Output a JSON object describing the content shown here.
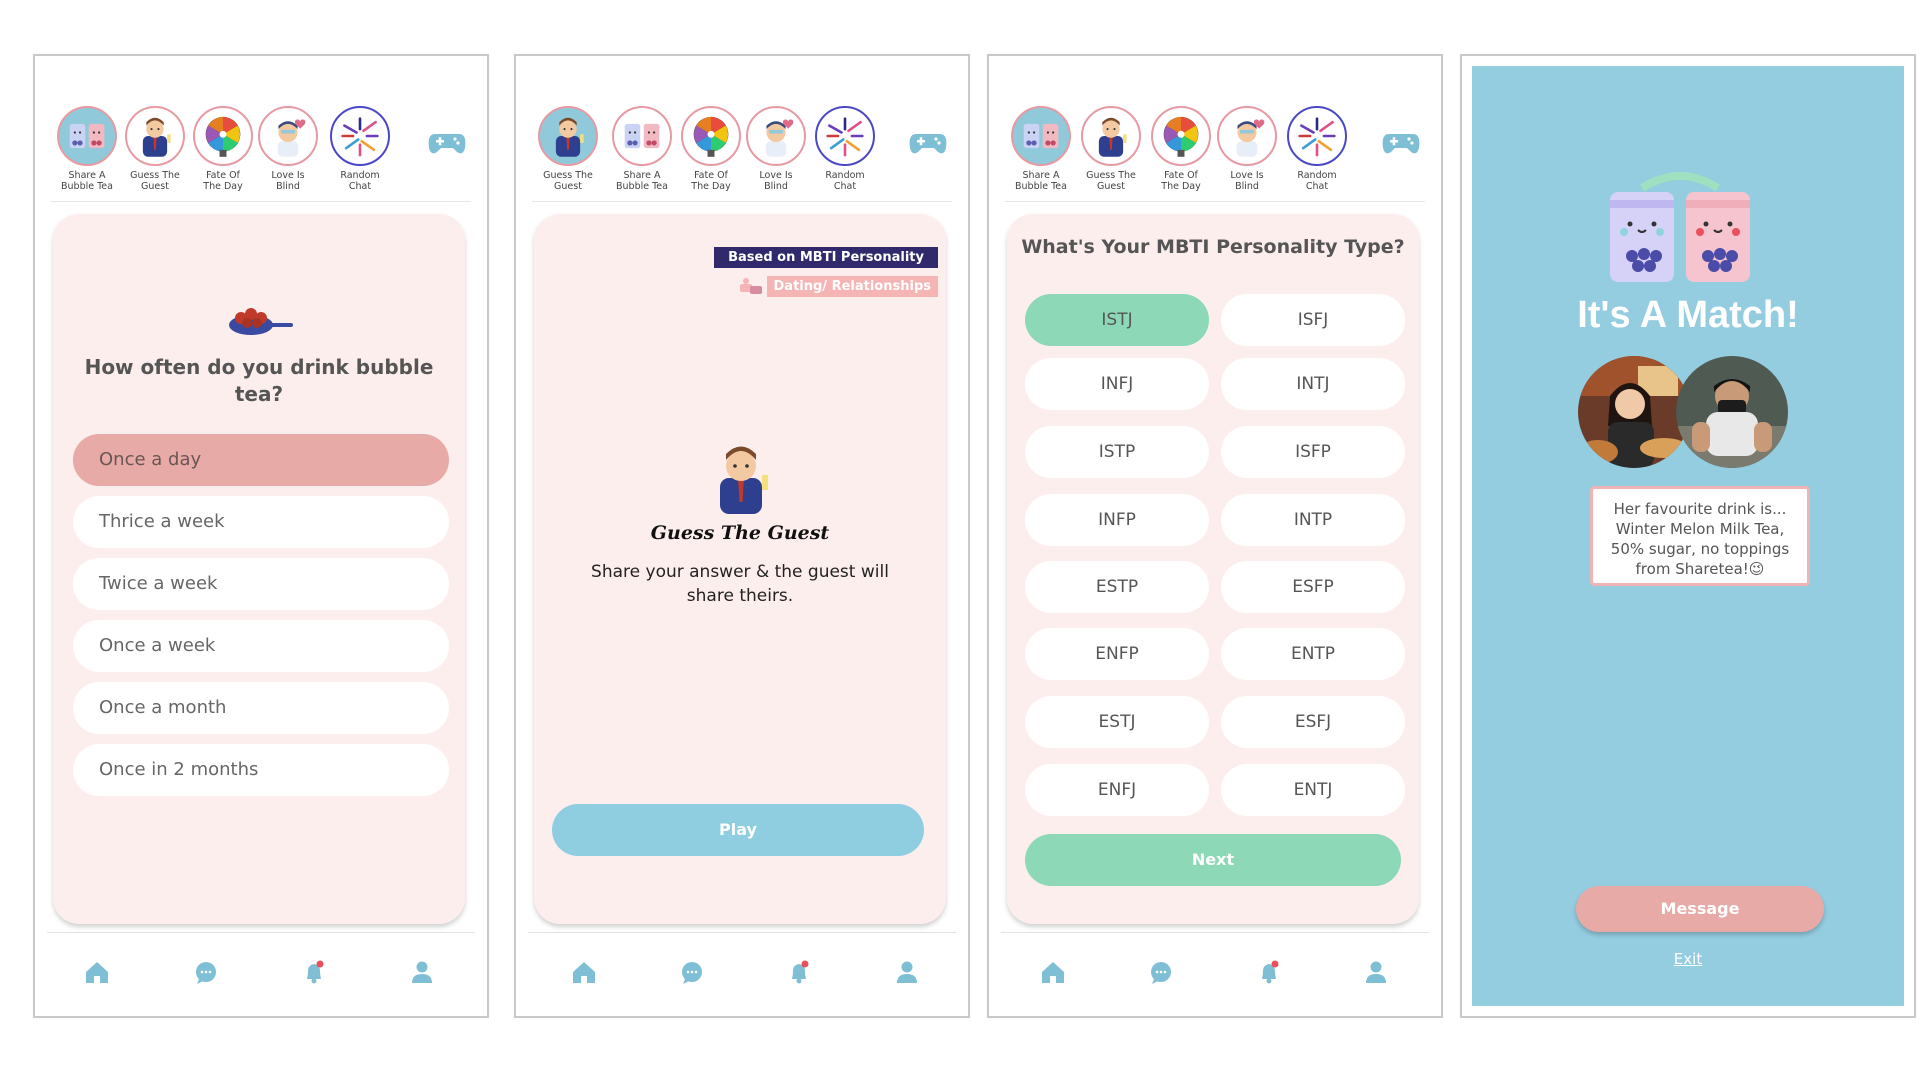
{
  "games": {
    "share_bubble_tea": "Share A\nBubble Tea",
    "guess_the_guest": "Guess The\nGuest",
    "fate_of_the_day": "Fate Of\nThe Day",
    "love_is_blind": "Love Is\nBlind",
    "random_chat": "Random\nChat"
  },
  "screen1": {
    "question": "How often do you drink bubble tea?",
    "options": [
      "Once a day",
      "Thrice a week",
      "Twice a week",
      "Once a week",
      "Once a month",
      "Once in 2 months"
    ],
    "selected": "Once a day"
  },
  "screen2": {
    "mbti_tag": "Based on MBTI Personality",
    "dating_tag": "Dating/ Relationships",
    "title": "Guess The Guest",
    "description": "Share your answer & the guest will share theirs.",
    "play_label": "Play"
  },
  "screen3": {
    "question": "What's Your MBTI Personality Type?",
    "types": [
      "ISTJ",
      "ISFJ",
      "INFJ",
      "INTJ",
      "ISTP",
      "ISFP",
      "INFP",
      "INTP",
      "ESTP",
      "ESFP",
      "ENFP",
      "ENTP",
      "ESTJ",
      "ESFJ",
      "ENFJ",
      "ENTJ"
    ],
    "selected": "ISTJ",
    "next_label": "Next"
  },
  "screen4": {
    "title": "It's A Match!",
    "message": "Her favourite drink is... Winter Melon Milk Tea, 50% sugar, no toppings from Sharetea!😉",
    "message_label": "Message",
    "exit_label": "Exit"
  },
  "nav": [
    "home-icon",
    "chat-icon",
    "notification-icon",
    "profile-icon"
  ],
  "colors": {
    "pink": "#e8aaa6",
    "blue": "#8fcde0",
    "green": "#8dd9b7",
    "navy": "#30296b",
    "card": "#fdeeee"
  }
}
